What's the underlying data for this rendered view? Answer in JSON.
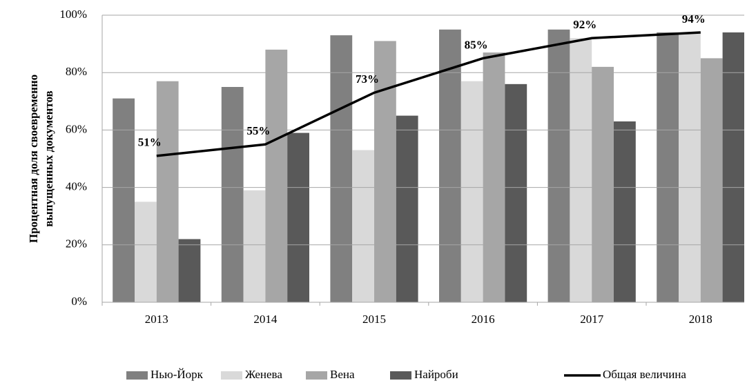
{
  "chart_data": {
    "type": "bar",
    "ylabel": [
      "Процентная доля своевременно",
      "выпущенных документов"
    ],
    "categories": [
      "2013",
      "2014",
      "2015",
      "2016",
      "2017",
      "2018"
    ],
    "series": [
      {
        "name": "Нью-Йорк",
        "color": "#808080",
        "values": [
          71,
          75,
          93,
          95,
          95,
          94
        ]
      },
      {
        "name": "Женева",
        "color": "#d9d9d9",
        "values": [
          35,
          39,
          53,
          77,
          92,
          94
        ]
      },
      {
        "name": "Вена",
        "color": "#a6a6a6",
        "values": [
          77,
          88,
          91,
          87,
          82,
          85
        ]
      },
      {
        "name": "Найроби",
        "color": "#595959",
        "values": [
          22,
          59,
          65,
          76,
          63,
          94
        ]
      },
      {
        "name": "Общая величина",
        "type": "line",
        "color": "#000000",
        "values": [
          51,
          55,
          73,
          85,
          92,
          94
        ],
        "value_labels": [
          "51%",
          "55%",
          "73%",
          "85%",
          "92%",
          "94%"
        ]
      }
    ],
    "ylim": [
      0,
      100
    ],
    "yticks": [
      {
        "value": 0,
        "label": "0%"
      },
      {
        "value": 20,
        "label": "20%"
      },
      {
        "value": 40,
        "label": "40%"
      },
      {
        "value": 60,
        "label": "60%"
      },
      {
        "value": 80,
        "label": "80%"
      },
      {
        "value": 100,
        "label": "100%"
      }
    ],
    "grid": true,
    "legend": "bottom"
  }
}
